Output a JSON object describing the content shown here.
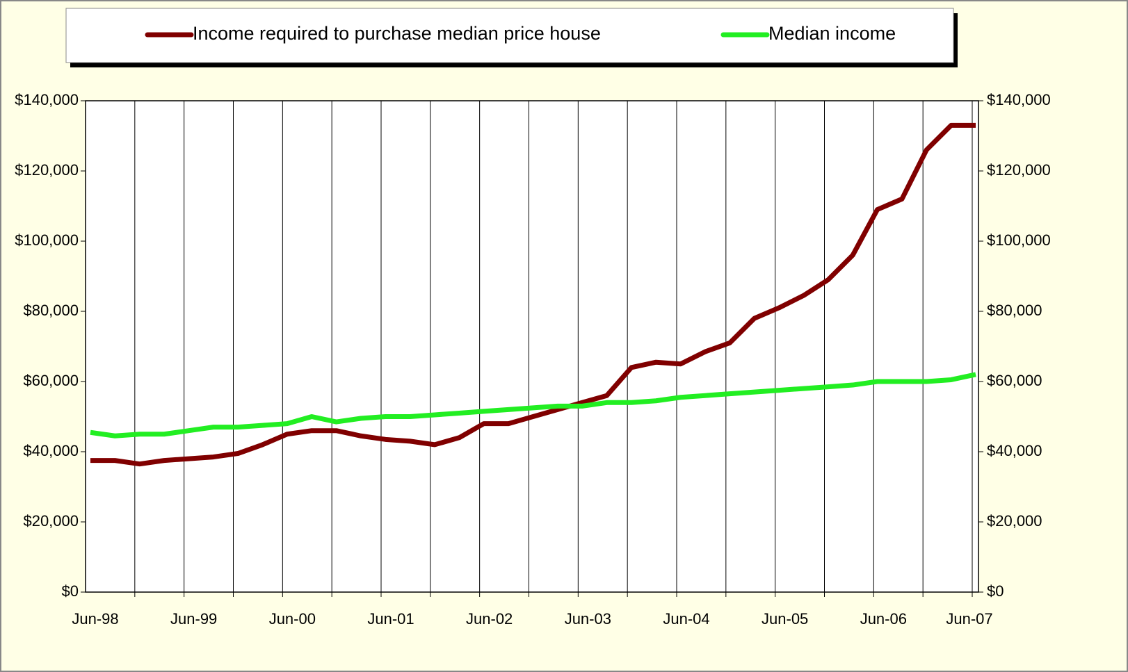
{
  "chart_data": {
    "type": "line",
    "categories": [
      "Jun-98",
      null,
      null,
      null,
      "Jun-99",
      null,
      null,
      null,
      "Jun-00",
      null,
      null,
      null,
      "Jun-01",
      null,
      null,
      null,
      "Jun-02",
      null,
      null,
      null,
      "Jun-03",
      null,
      null,
      null,
      "Jun-04",
      null,
      null,
      null,
      "Jun-05",
      null,
      null,
      null,
      "Jun-06",
      null,
      null,
      null,
      "Jun-07"
    ],
    "series": [
      {
        "name": "Income required to purchase median price house",
        "color": "#800000",
        "values": [
          37500,
          37500,
          36500,
          37500,
          38000,
          38500,
          39500,
          42000,
          45000,
          46000,
          46000,
          44500,
          43500,
          43000,
          42000,
          44000,
          48000,
          48000,
          50000,
          52000,
          54000,
          56000,
          64000,
          65500,
          65000,
          68500,
          71000,
          78000,
          81000,
          84500,
          89000,
          96000,
          109000,
          112000,
          126000,
          133000,
          133000
        ]
      },
      {
        "name": "Median income",
        "color": "#22ee22",
        "values": [
          45500,
          44500,
          45000,
          45000,
          46000,
          47000,
          47000,
          47500,
          48000,
          50000,
          48500,
          49500,
          50000,
          50000,
          50500,
          51000,
          51500,
          52000,
          52500,
          53000,
          53000,
          54000,
          54000,
          54500,
          55500,
          56000,
          56500,
          57000,
          57500,
          58000,
          58500,
          59000,
          60000,
          60000,
          60000,
          60500,
          62000
        ]
      }
    ],
    "ylim": [
      0,
      140000
    ],
    "yticks": [
      {
        "value": 0,
        "label": "$0"
      },
      {
        "value": 20000,
        "label": "$20,000"
      },
      {
        "value": 40000,
        "label": "$40,000"
      },
      {
        "value": 60000,
        "label": "$60,000"
      },
      {
        "value": 80000,
        "label": "$80,000"
      },
      {
        "value": 100000,
        "label": "$100,000"
      },
      {
        "value": 120000,
        "label": "$120,000"
      },
      {
        "value": 140000,
        "label": "$140,000"
      }
    ],
    "y2lim": [
      0,
      140000
    ],
    "y2ticks": [
      {
        "value": 0,
        "label": "$0"
      },
      {
        "value": 20000,
        "label": "$20,000"
      },
      {
        "value": 40000,
        "label": "$40,000"
      },
      {
        "value": 60000,
        "label": "$60,000"
      },
      {
        "value": 80000,
        "label": "$80,000"
      },
      {
        "value": 100000,
        "label": "$100,000"
      },
      {
        "value": 120000,
        "label": "$120,000"
      },
      {
        "value": 140000,
        "label": "$140,000"
      }
    ],
    "xgrid": true,
    "legend": "top"
  }
}
